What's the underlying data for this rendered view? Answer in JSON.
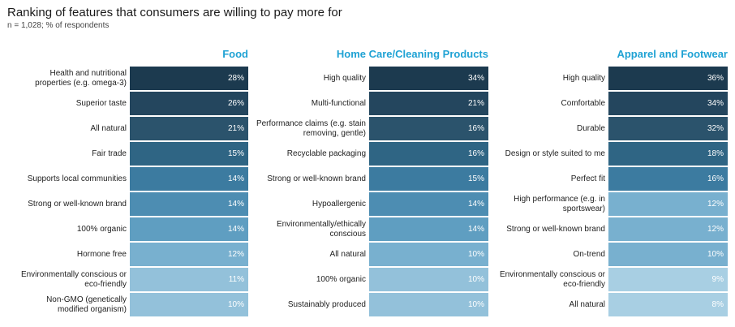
{
  "title": "Ranking of features that consumers are willing to pay more for",
  "subtitle": "n = 1,028; % of respondents",
  "colors": [
    "#1c3a4f",
    "#24465e",
    "#2b536c",
    "#2f6584",
    "#3c7ba0",
    "#4d8db2",
    "#5f9ec1",
    "#78b0cf",
    "#93c1da",
    "#a8cfe3"
  ],
  "chart_data": [
    {
      "type": "table",
      "title": "Food",
      "categories": [
        "Health and nutritional\nproperties (e.g. omega-3)",
        "Superior taste",
        "All natural",
        "Fair trade",
        "Supports local communities",
        "Strong or well-known brand",
        "100% organic",
        "Hormone free",
        "Environmentally conscious or\neco-friendly",
        "Non-GMO (genetically\nmodified organism)"
      ],
      "values": [
        28,
        26,
        21,
        15,
        14,
        14,
        14,
        12,
        11,
        10
      ],
      "value_labels": [
        "28%",
        "26%",
        "21%",
        "15%",
        "14%",
        "14%",
        "14%",
        "12%",
        "11%",
        "10%"
      ],
      "shades": [
        0,
        1,
        2,
        3,
        4,
        5,
        6,
        7,
        8,
        8
      ]
    },
    {
      "type": "table",
      "title": "Home Care/Cleaning Products",
      "categories": [
        "High quality",
        "Multi-functional",
        "Performance claims (e.g. stain\nremoving, gentle)",
        "Recyclable packaging",
        "Strong or well-known brand",
        "Hypoallergenic",
        "Environmentally/ethically\nconscious",
        "All natural",
        "100% organic",
        "Sustainably produced"
      ],
      "values": [
        34,
        21,
        16,
        16,
        15,
        14,
        14,
        10,
        10,
        10
      ],
      "value_labels": [
        "34%",
        "21%",
        "16%",
        "16%",
        "15%",
        "14%",
        "14%",
        "10%",
        "10%",
        "10%"
      ],
      "shades": [
        0,
        1,
        2,
        3,
        4,
        5,
        6,
        7,
        8,
        8
      ]
    },
    {
      "type": "table",
      "title": "Apparel and Footwear",
      "categories": [
        "High quality",
        "Comfortable",
        "Durable",
        "Design or style suited to me",
        "Perfect fit",
        "High performance (e.g. in\nsportswear)",
        "Strong or well-known brand",
        "On-trend",
        "Environmentally conscious or\neco-friendly",
        "All natural"
      ],
      "values": [
        36,
        34,
        32,
        18,
        16,
        12,
        12,
        10,
        9,
        8
      ],
      "value_labels": [
        "36%",
        "34%",
        "32%",
        "18%",
        "16%",
        "12%",
        "12%",
        "10%",
        "9%",
        "8%"
      ],
      "shades": [
        0,
        1,
        2,
        3,
        4,
        7,
        7,
        7,
        9,
        9
      ]
    }
  ]
}
